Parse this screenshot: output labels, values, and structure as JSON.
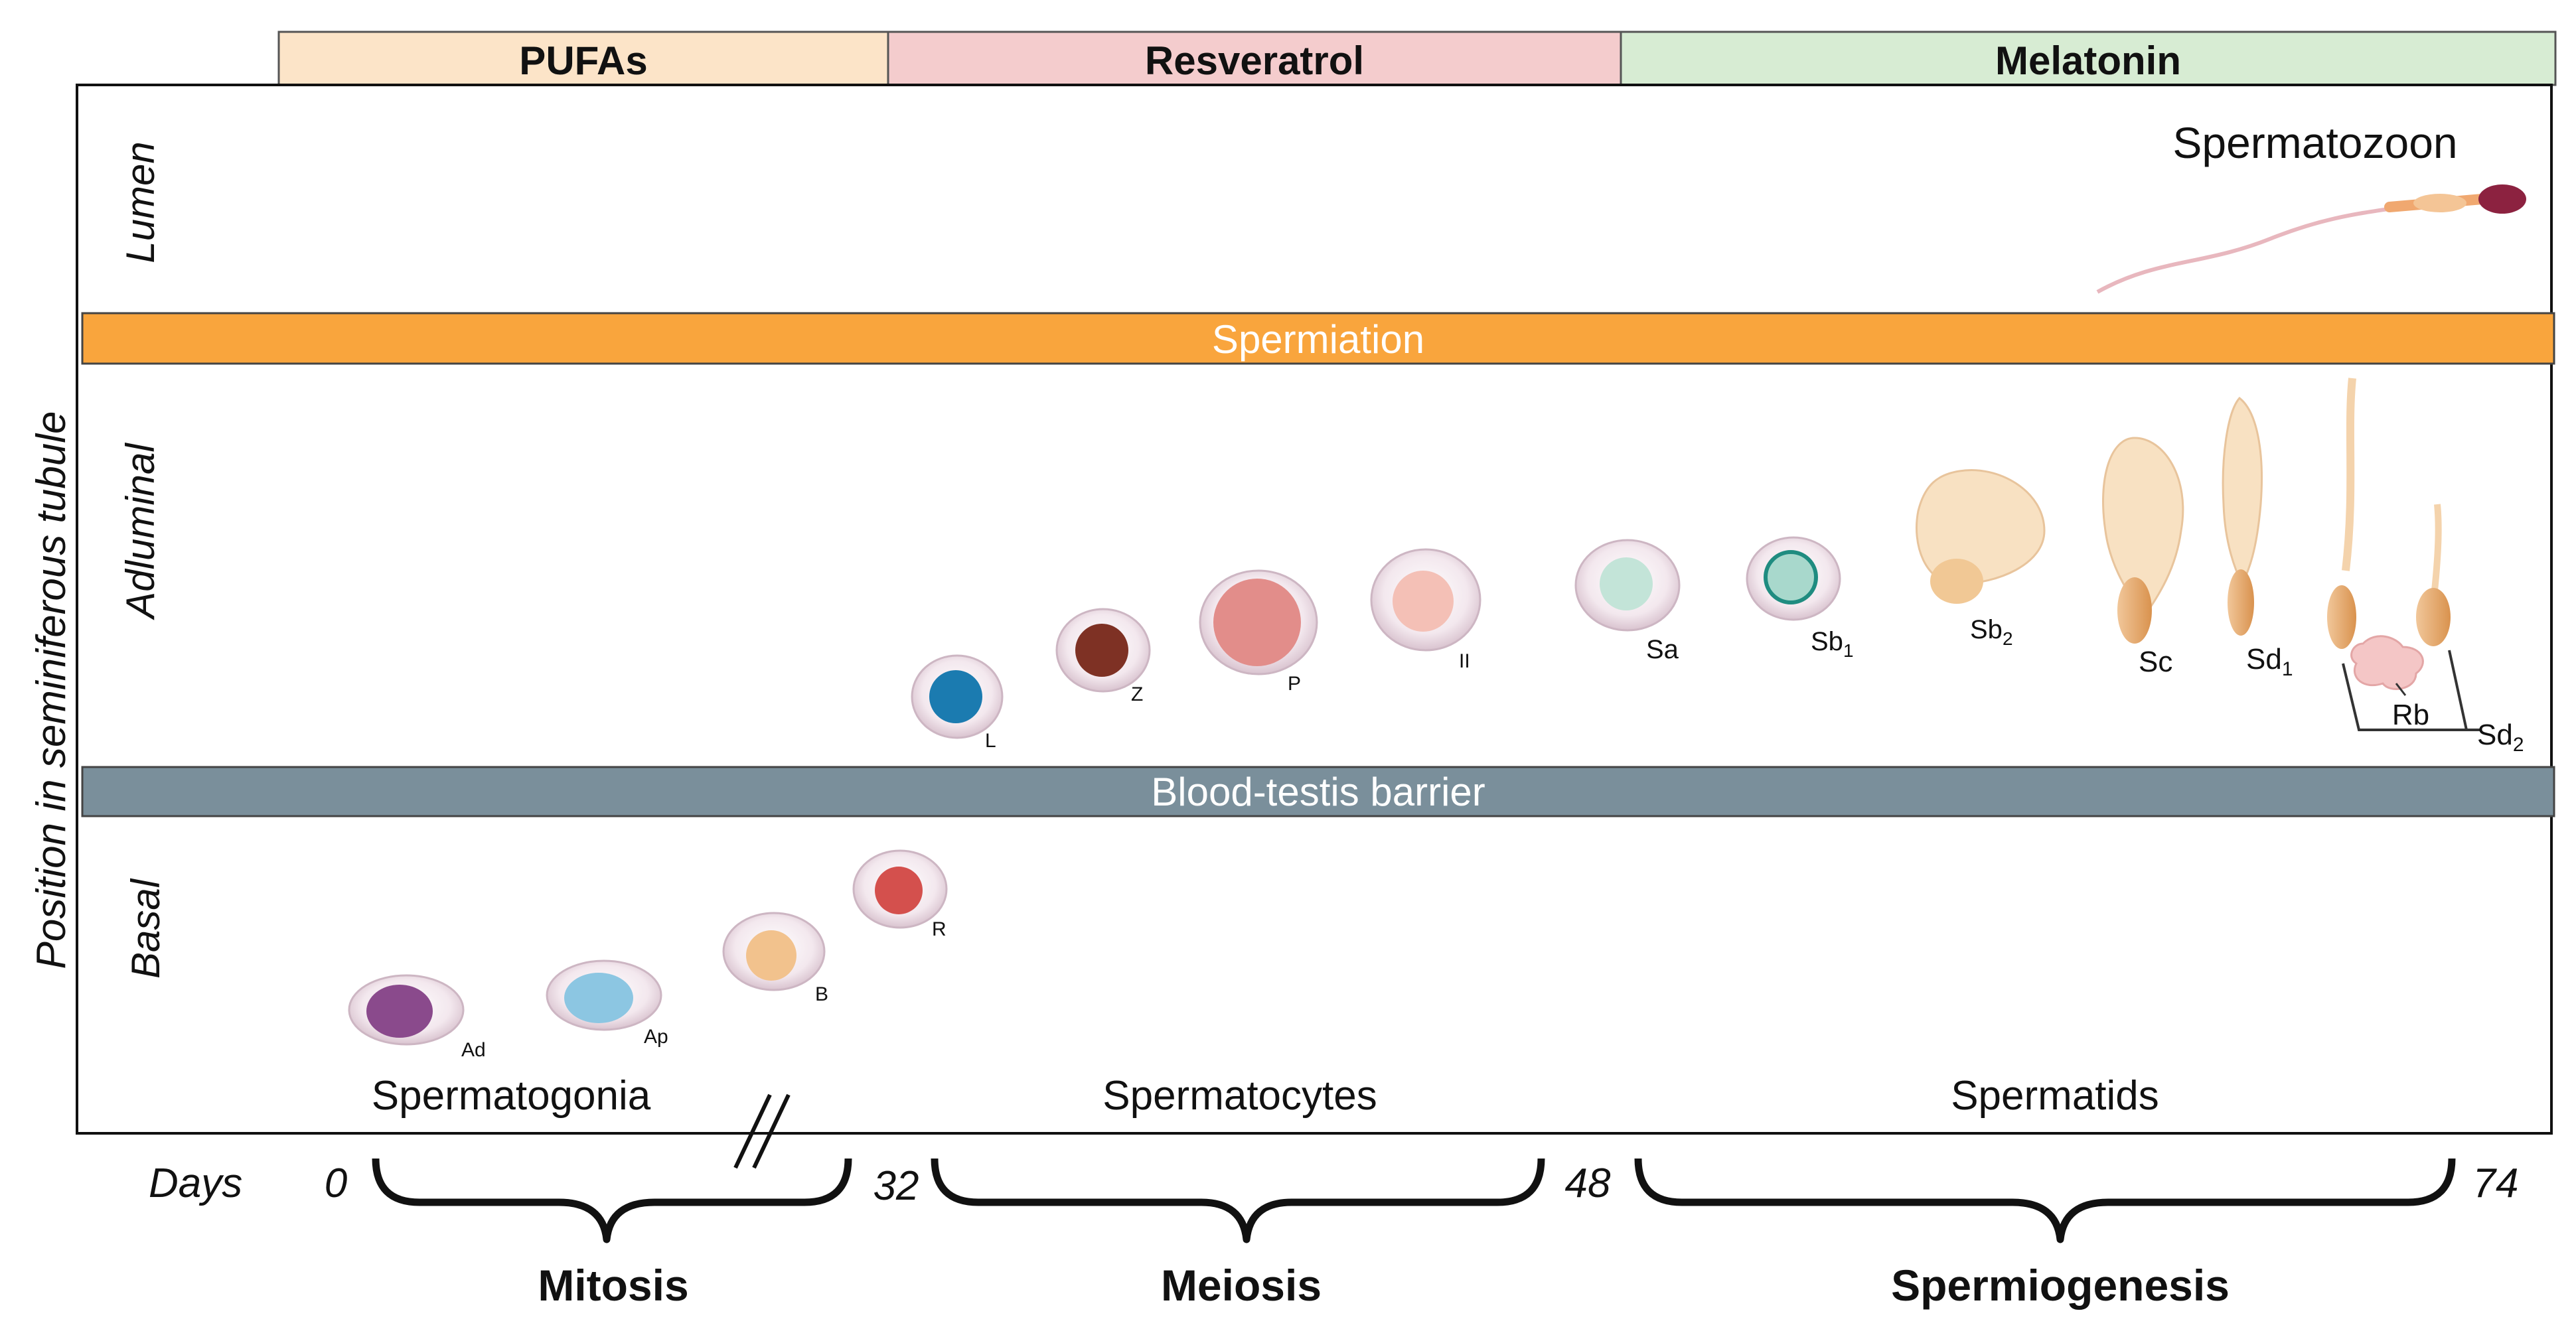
{
  "supplements": [
    {
      "label": "PUFAs",
      "color": "#fce4c8"
    },
    {
      "label": "Resveratrol",
      "color": "#f4cccd"
    },
    {
      "label": "Melatonin",
      "color": "#d7ecd3"
    }
  ],
  "y_axis_label": "Position in seminiferous tubule",
  "zones": {
    "lumen": "Lumen",
    "adluminal": "Adluminal",
    "basal": "Basal"
  },
  "bars": {
    "spermiation": {
      "label": "Spermiation",
      "color": "#f9a53d"
    },
    "barrier": {
      "label": "Blood-testis barrier",
      "color": "#7a8f9b"
    }
  },
  "spermatozoon_label": "Spermatozoon",
  "cell_groups": [
    "Spermatogonia",
    "Spermatocytes",
    "Spermatids"
  ],
  "cells": {
    "ad": "Ad",
    "ap": "Ap",
    "b": "B",
    "r": "R",
    "l": "L",
    "z": "Z",
    "p": "P",
    "ii": "II",
    "sa": "Sa",
    "sb1": "Sb",
    "sb1_sub": "1",
    "sb2": "Sb",
    "sb2_sub": "2",
    "sc": "Sc",
    "sd1": "Sd",
    "sd1_sub": "1",
    "sd2": "Sd",
    "sd2_sub": "2",
    "rb": "Rb"
  },
  "days": {
    "label": "Days",
    "d0": "0",
    "d32": "32",
    "d48": "48",
    "d74": "74"
  },
  "phases": [
    "Mitosis",
    "Meiosis",
    "Spermiogenesis"
  ]
}
